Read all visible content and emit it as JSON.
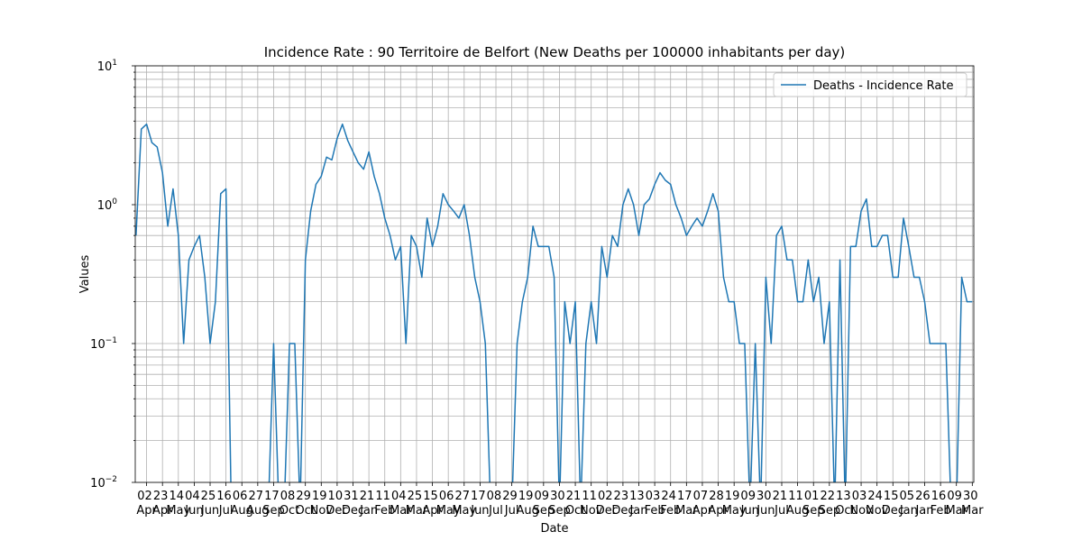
{
  "chart_data": {
    "type": "line",
    "title": "Incidence Rate : 90 Territoire de Belfort (New Deaths per 100000 inhabitants per day)",
    "xlabel": "Date",
    "ylabel": "Values",
    "yscale": "log",
    "grid": true,
    "legend": "upper right",
    "xlim": [
      "2020-03-18",
      "2023-04-01"
    ],
    "ylim": [
      0.01,
      10
    ],
    "yticks": [
      {
        "value": 0.01,
        "label": "10",
        "exponent": "−2"
      },
      {
        "value": 0.1,
        "label": "10",
        "exponent": "−1"
      },
      {
        "value": 1,
        "label": "10",
        "exponent": "0"
      },
      {
        "value": 10,
        "label": "10",
        "exponent": "1"
      }
    ],
    "yminorticks": [
      0.02,
      0.03,
      0.04,
      0.05,
      0.06,
      0.07,
      0.08,
      0.09,
      0.2,
      0.3,
      0.4,
      0.5,
      0.6,
      0.7,
      0.8,
      0.9,
      2,
      3,
      4,
      5,
      6,
      7,
      8,
      9
    ],
    "xticks": [
      {
        "value": "2020-04-02",
        "label": "02 Apr"
      },
      {
        "value": "2020-04-23",
        "label": "23 Apr"
      },
      {
        "value": "2020-05-14",
        "label": "14 May"
      },
      {
        "value": "2020-06-04",
        "label": "04 Jun"
      },
      {
        "value": "2020-06-25",
        "label": "25 Jun"
      },
      {
        "value": "2020-07-16",
        "label": "16 Jul"
      },
      {
        "value": "2020-08-06",
        "label": "06 Aug"
      },
      {
        "value": "2020-08-27",
        "label": "27 Aug"
      },
      {
        "value": "2020-09-17",
        "label": "17 Sep"
      },
      {
        "value": "2020-10-08",
        "label": "08 Oct"
      },
      {
        "value": "2020-10-29",
        "label": "29 Oct"
      },
      {
        "value": "2020-11-19",
        "label": "19 Nov"
      },
      {
        "value": "2020-12-10",
        "label": "10 Dec"
      },
      {
        "value": "2020-12-31",
        "label": "31 Dec"
      },
      {
        "value": "2021-01-21",
        "label": "21 Jan"
      },
      {
        "value": "2021-02-11",
        "label": "11 Feb"
      },
      {
        "value": "2021-03-04",
        "label": "04 Mar"
      },
      {
        "value": "2021-03-25",
        "label": "25 Mar"
      },
      {
        "value": "2021-04-15",
        "label": "15 Apr"
      },
      {
        "value": "2021-05-06",
        "label": "06 May"
      },
      {
        "value": "2021-05-27",
        "label": "27 May"
      },
      {
        "value": "2021-06-17",
        "label": "17 Jun"
      },
      {
        "value": "2021-07-08",
        "label": "08 Jul"
      },
      {
        "value": "2021-07-29",
        "label": "29 Jul"
      },
      {
        "value": "2021-08-19",
        "label": "19 Aug"
      },
      {
        "value": "2021-09-09",
        "label": "09 Sep"
      },
      {
        "value": "2021-09-30",
        "label": "30 Sep"
      },
      {
        "value": "2021-10-21",
        "label": "21 Oct"
      },
      {
        "value": "2021-11-11",
        "label": "11 Nov"
      },
      {
        "value": "2021-12-02",
        "label": "02 Dec"
      },
      {
        "value": "2021-12-23",
        "label": "23 Dec"
      },
      {
        "value": "2022-01-13",
        "label": "13 Jan"
      },
      {
        "value": "2022-02-03",
        "label": "03 Feb"
      },
      {
        "value": "2022-02-24",
        "label": "24 Feb"
      },
      {
        "value": "2022-03-17",
        "label": "17 Mar"
      },
      {
        "value": "2022-04-07",
        "label": "07 Apr"
      },
      {
        "value": "2022-04-28",
        "label": "28 Apr"
      },
      {
        "value": "2022-05-19",
        "label": "19 May"
      },
      {
        "value": "2022-06-09",
        "label": "09 Jun"
      },
      {
        "value": "2022-06-30",
        "label": "30 Jun"
      },
      {
        "value": "2022-07-21",
        "label": "21 Jul"
      },
      {
        "value": "2022-08-11",
        "label": "11 Aug"
      },
      {
        "value": "2022-09-01",
        "label": "01 Sep"
      },
      {
        "value": "2022-09-22",
        "label": "22 Sep"
      },
      {
        "value": "2022-10-13",
        "label": "13 Oct"
      },
      {
        "value": "2022-11-03",
        "label": "03 Nov"
      },
      {
        "value": "2022-11-24",
        "label": "24 Nov"
      },
      {
        "value": "2022-12-15",
        "label": "15 Dec"
      },
      {
        "value": "2023-01-05",
        "label": "05 Jan"
      },
      {
        "value": "2023-01-26",
        "label": "26 Jan"
      },
      {
        "value": "2023-02-16",
        "label": "16 Feb"
      },
      {
        "value": "2023-03-09",
        "label": "09 Mar"
      },
      {
        "value": "2023-03-30",
        "label": "30 Mar"
      }
    ],
    "x": [
      "2020-03-19",
      "2020-03-26",
      "2020-04-02",
      "2020-04-09",
      "2020-04-16",
      "2020-04-23",
      "2020-04-30",
      "2020-05-07",
      "2020-05-14",
      "2020-05-21",
      "2020-05-28",
      "2020-06-04",
      "2020-06-11",
      "2020-06-18",
      "2020-06-25",
      "2020-07-02",
      "2020-07-09",
      "2020-07-16",
      "2020-07-23",
      "2020-07-30",
      "2020-08-06",
      "2020-08-13",
      "2020-08-20",
      "2020-08-27",
      "2020-09-03",
      "2020-09-10",
      "2020-09-17",
      "2020-09-24",
      "2020-10-01",
      "2020-10-08",
      "2020-10-15",
      "2020-10-22",
      "2020-10-29",
      "2020-11-05",
      "2020-11-12",
      "2020-11-19",
      "2020-11-26",
      "2020-12-03",
      "2020-12-10",
      "2020-12-17",
      "2020-12-24",
      "2020-12-31",
      "2021-01-07",
      "2021-01-14",
      "2021-01-21",
      "2021-01-28",
      "2021-02-04",
      "2021-02-11",
      "2021-02-18",
      "2021-02-25",
      "2021-03-04",
      "2021-03-11",
      "2021-03-18",
      "2021-03-25",
      "2021-04-01",
      "2021-04-08",
      "2021-04-15",
      "2021-04-22",
      "2021-04-29",
      "2021-05-06",
      "2021-05-13",
      "2021-05-20",
      "2021-05-27",
      "2021-06-03",
      "2021-06-10",
      "2021-06-17",
      "2021-06-24",
      "2021-07-01",
      "2021-07-08",
      "2021-07-15",
      "2021-07-22",
      "2021-07-29",
      "2021-08-05",
      "2021-08-12",
      "2021-08-19",
      "2021-08-26",
      "2021-09-02",
      "2021-09-09",
      "2021-09-16",
      "2021-09-23",
      "2021-09-30",
      "2021-10-07",
      "2021-10-14",
      "2021-10-21",
      "2021-10-28",
      "2021-11-04",
      "2021-11-11",
      "2021-11-18",
      "2021-11-25",
      "2021-12-02",
      "2021-12-09",
      "2021-12-16",
      "2021-12-23",
      "2021-12-30",
      "2022-01-06",
      "2022-01-13",
      "2022-01-20",
      "2022-01-27",
      "2022-02-03",
      "2022-02-10",
      "2022-02-17",
      "2022-02-24",
      "2022-03-03",
      "2022-03-10",
      "2022-03-17",
      "2022-03-24",
      "2022-03-31",
      "2022-04-07",
      "2022-04-14",
      "2022-04-21",
      "2022-04-28",
      "2022-05-05",
      "2022-05-12",
      "2022-05-19",
      "2022-05-26",
      "2022-06-02",
      "2022-06-09",
      "2022-06-16",
      "2022-06-23",
      "2022-06-30",
      "2022-07-07",
      "2022-07-14",
      "2022-07-21",
      "2022-07-28",
      "2022-08-04",
      "2022-08-11",
      "2022-08-18",
      "2022-08-25",
      "2022-09-01",
      "2022-09-08",
      "2022-09-15",
      "2022-09-22",
      "2022-09-29",
      "2022-10-06",
      "2022-10-13",
      "2022-10-20",
      "2022-10-27",
      "2022-11-03",
      "2022-11-10",
      "2022-11-17",
      "2022-11-24",
      "2022-12-01",
      "2022-12-08",
      "2022-12-15",
      "2022-12-22",
      "2022-12-29",
      "2023-01-05",
      "2023-01-12",
      "2023-01-19",
      "2023-01-26",
      "2023-02-02",
      "2023-02-09",
      "2023-02-16",
      "2023-02-23",
      "2023-03-02",
      "2023-03-09",
      "2023-03-16",
      "2023-03-23",
      "2023-03-30"
    ],
    "series": [
      {
        "name": "Deaths - Incidence Rate",
        "color": "#1f77b4",
        "values": [
          0.6,
          3.5,
          3.8,
          2.8,
          2.6,
          1.7,
          0.7,
          1.3,
          0.6,
          0.1,
          0.4,
          0.5,
          0.6,
          0.3,
          0.1,
          0.2,
          1.2,
          1.3,
          0,
          0,
          0,
          0,
          0,
          0,
          0,
          0,
          0.1,
          0,
          0,
          0.1,
          0.1,
          0,
          0.4,
          0.9,
          1.4,
          1.6,
          2.2,
          2.1,
          3.0,
          3.8,
          2.9,
          2.4,
          2.0,
          1.8,
          2.4,
          1.6,
          1.2,
          0.8,
          0.6,
          0.4,
          0.5,
          0.1,
          0.6,
          0.5,
          0.3,
          0.8,
          0.5,
          0.7,
          1.2,
          1.0,
          0.9,
          0.8,
          1.0,
          0.6,
          0.3,
          0.2,
          0.1,
          0,
          0,
          0,
          0,
          0,
          0.1,
          0.2,
          0.3,
          0.7,
          0.5,
          0.5,
          0.5,
          0.3,
          0,
          0.2,
          0.1,
          0.2,
          0,
          0.1,
          0.2,
          0.1,
          0.5,
          0.3,
          0.6,
          0.5,
          1.0,
          1.3,
          1.0,
          0.6,
          1.0,
          1.1,
          1.4,
          1.7,
          1.5,
          1.4,
          1.0,
          0.8,
          0.6,
          0.7,
          0.8,
          0.7,
          0.9,
          1.2,
          0.9,
          0.3,
          0.2,
          0.2,
          0.1,
          0.1,
          0,
          0.1,
          0,
          0.3,
          0.1,
          0.6,
          0.7,
          0.4,
          0.4,
          0.2,
          0.2,
          0.4,
          0.2,
          0.3,
          0.1,
          0.2,
          0,
          0.4,
          0,
          0.5,
          0.5,
          0.9,
          1.1,
          0.5,
          0.5,
          0.6,
          0.6,
          0.3,
          0.3,
          0.8,
          0.5,
          0.3,
          0.3,
          0.2,
          0.1,
          0.1,
          0.1,
          0.1,
          0,
          0,
          0.3,
          0.2,
          0.2
        ]
      }
    ]
  }
}
